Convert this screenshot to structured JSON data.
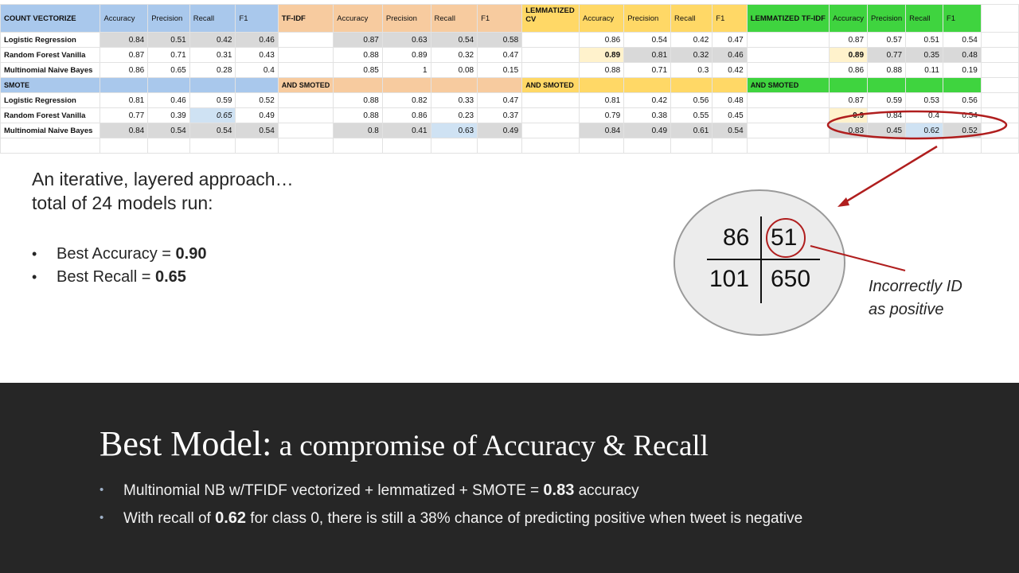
{
  "sheet": {
    "headers": {
      "count_vectorize": "COUNT VECTORIZE",
      "tfidf": "TF-IDF",
      "lemmatized_cv": "LEMMATIZED CV",
      "lemmatized_tfidf": "LEMMATIZED TF-IDF",
      "accuracy": "Accuracy",
      "precision": "Precision",
      "recall": "Recall",
      "f1": "F1"
    },
    "smote_label": "SMOTE",
    "and_smoted": "AND SMOTED",
    "rows_vanilla": [
      {
        "name": "Logistic Regression",
        "cv": [
          "0.84",
          "0.51",
          "0.42",
          "0.46"
        ],
        "tfidf": [
          "0.87",
          "0.63",
          "0.54",
          "0.58"
        ],
        "lcv": [
          "0.86",
          "0.54",
          "0.42",
          "0.47"
        ],
        "ltfidf": [
          "0.87",
          "0.57",
          "0.51",
          "0.54"
        ]
      },
      {
        "name": "Random Forest Vanilla",
        "cv": [
          "0.87",
          "0.71",
          "0.31",
          "0.43"
        ],
        "tfidf": [
          "0.88",
          "0.89",
          "0.32",
          "0.47"
        ],
        "lcv": [
          "0.89",
          "0.81",
          "0.32",
          "0.46"
        ],
        "ltfidf": [
          "0.89",
          "0.77",
          "0.35",
          "0.48"
        ]
      },
      {
        "name": "Multinomial Naive Bayes",
        "cv": [
          "0.86",
          "0.65",
          "0.28",
          "0.4"
        ],
        "tfidf": [
          "0.85",
          "1",
          "0.08",
          "0.15"
        ],
        "lcv": [
          "0.88",
          "0.71",
          "0.3",
          "0.42"
        ],
        "ltfidf": [
          "0.86",
          "0.88",
          "0.11",
          "0.19"
        ]
      }
    ],
    "rows_smote": [
      {
        "name": "Logistic Regression",
        "cv": [
          "0.81",
          "0.46",
          "0.59",
          "0.52"
        ],
        "tfidf": [
          "0.88",
          "0.82",
          "0.33",
          "0.47"
        ],
        "lcv": [
          "0.81",
          "0.42",
          "0.56",
          "0.48"
        ],
        "ltfidf": [
          "0.87",
          "0.59",
          "0.53",
          "0.56"
        ]
      },
      {
        "name": "Random Forest Vanilla",
        "cv": [
          "0.77",
          "0.39",
          "0.65",
          "0.49"
        ],
        "tfidf": [
          "0.88",
          "0.86",
          "0.23",
          "0.37"
        ],
        "lcv": [
          "0.79",
          "0.38",
          "0.55",
          "0.45"
        ],
        "ltfidf": [
          "0.9",
          "0.84",
          "0.4",
          "0.54"
        ]
      },
      {
        "name": "Multinomial Naive Bayes",
        "cv": [
          "0.84",
          "0.54",
          "0.54",
          "0.54"
        ],
        "tfidf": [
          "0.8",
          "0.41",
          "0.63",
          "0.49"
        ],
        "lcv": [
          "0.84",
          "0.49",
          "0.61",
          "0.54"
        ],
        "ltfidf": [
          "0.83",
          "0.45",
          "0.62",
          "0.52"
        ]
      }
    ]
  },
  "intro": {
    "line1": "An iterative, layered approach…",
    "line2": "total of 24 models run:"
  },
  "bullets": [
    {
      "label": "Best Accuracy = ",
      "value": "0.90"
    },
    {
      "label": "Best Recall = ",
      "value": "0.65"
    }
  ],
  "confusion_matrix": {
    "tl": "86",
    "tr": "51",
    "bl": "101",
    "br": "650",
    "note_line1": "Incorrectly ID",
    "note_line2": "as positive"
  },
  "band": {
    "title_main": "Best Model:",
    "title_sub": " a compromise of Accuracy & Recall",
    "item1_pre": "Multinomial NB w/TFIDF vectorized + lemmatized + SMOTE =  ",
    "item1_val": "0.83",
    "item1_post": " accuracy",
    "item2_pre": "With recall of ",
    "item2_val": "0.62",
    "item2_post": " for class 0, there is still a 38% chance of predicting positive when tweet is negative"
  },
  "colors": {
    "blue": "#a9c8ec",
    "orange": "#f7cb9f",
    "yellow": "#ffd866",
    "green": "#3fd43f",
    "highlight_red": "#b01e1e",
    "band_bg": "#262626"
  }
}
